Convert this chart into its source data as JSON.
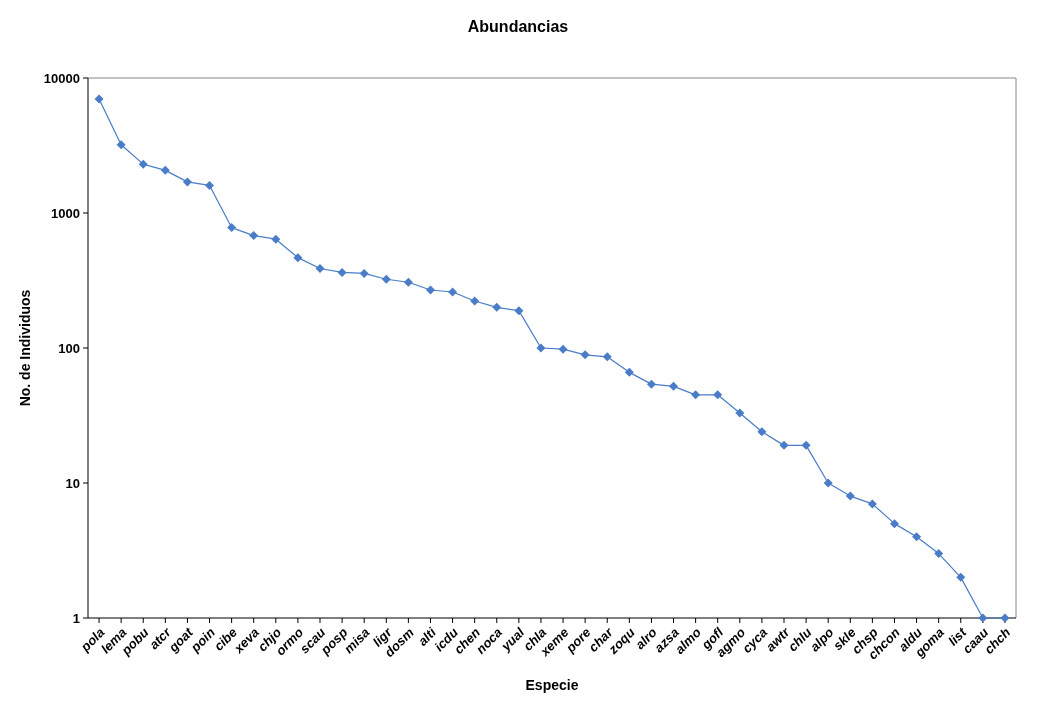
{
  "chart_data": {
    "type": "line",
    "title": "Abundancias",
    "xlabel": "Especie",
    "ylabel": "No. de Individuos",
    "categories": [
      "pola",
      "lema",
      "pobu",
      "atcr",
      "goat",
      "poin",
      "cibe",
      "xeva",
      "chjo",
      "ormo",
      "scau",
      "posp",
      "misa",
      "ligr",
      "dosm",
      "alti",
      "icdu",
      "chen",
      "noca",
      "yual",
      "chla",
      "xeme",
      "pore",
      "char",
      "zoqu",
      "alro",
      "azsa",
      "almo",
      "gofl",
      "agmo",
      "cyca",
      "awtr",
      "chlu",
      "alpo",
      "skle",
      "chsp",
      "chcon",
      "aldu",
      "goma",
      "list",
      "caau",
      "chch"
    ],
    "series": [
      {
        "color": "#4a7cc7",
        "values": [
          7000,
          3200,
          2300,
          2070,
          1700,
          1600,
          780,
          680,
          640,
          467,
          388,
          363,
          357,
          323,
          307,
          269,
          260,
          223,
          200,
          189,
          100,
          98,
          89,
          86,
          66,
          54,
          52,
          45,
          45,
          33,
          24,
          19,
          19,
          10,
          8,
          7,
          5,
          4,
          3,
          2,
          1,
          1
        ]
      }
    ],
    "log": true,
    "ylim": [
      1,
      10000
    ],
    "yticks": [
      1,
      10,
      100,
      1000,
      10000
    ],
    "grid": false,
    "legend": false,
    "marker": "diamond",
    "line_style": "solid"
  }
}
